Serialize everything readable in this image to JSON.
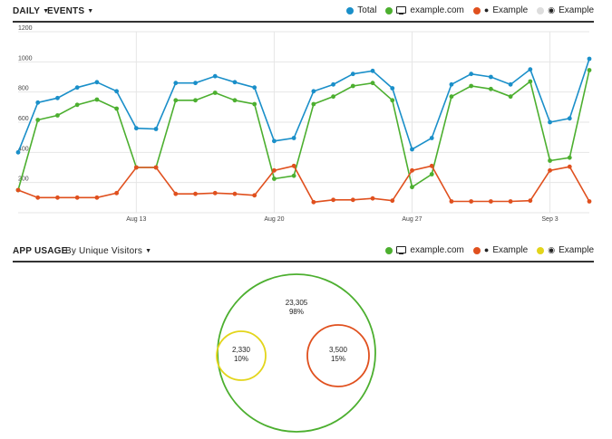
{
  "header": {
    "period_label": "DAILY",
    "metric_label": "EVENTS",
    "legend": [
      {
        "label": "Total",
        "color": "#1a8fc9",
        "icon": "dot"
      },
      {
        "label": "example.com",
        "color": "#4caf2f",
        "icon": "monitor-icon"
      },
      {
        "label": "Example",
        "color": "#e0501e",
        "icon": "apple-icon"
      },
      {
        "label": "Example",
        "color": "#dddddd",
        "icon": "android-icon"
      }
    ]
  },
  "usage": {
    "title": "APP USAGE",
    "filter_label": "By Unique Visitors",
    "legend": [
      {
        "label": "example.com",
        "color": "#4caf2f",
        "icon": "monitor-icon"
      },
      {
        "label": "Example",
        "color": "#e0501e",
        "icon": "apple-icon"
      },
      {
        "label": "Example",
        "color": "#e3d51b",
        "icon": "android-icon"
      }
    ]
  },
  "chart_data": [
    {
      "type": "line",
      "ylim": [
        0,
        1200
      ],
      "yticks": [
        200,
        400,
        600,
        800,
        1000,
        1200
      ],
      "ytick_labels": [
        "200",
        "400",
        "600",
        "800",
        "1000",
        "1200"
      ],
      "x_tick_labels": [
        {
          "index": 6,
          "label": "Aug 13"
        },
        {
          "index": 13,
          "label": "Aug 20"
        },
        {
          "index": 20,
          "label": "Aug 27"
        },
        {
          "index": 27,
          "label": "Sep 3"
        }
      ],
      "grid": true,
      "series": [
        {
          "color": "#1a8fc9",
          "values": [
            400,
            730,
            760,
            830,
            865,
            805,
            560,
            555,
            860,
            860,
            905,
            865,
            830,
            475,
            495,
            805,
            850,
            920,
            940,
            825,
            420,
            495,
            850,
            920,
            900,
            850,
            950,
            600,
            625,
            1020
          ]
        },
        {
          "color": "#4caf2f",
          "values": [
            150,
            615,
            645,
            715,
            750,
            690,
            300,
            300,
            745,
            745,
            795,
            745,
            720,
            225,
            245,
            720,
            770,
            840,
            860,
            745,
            170,
            255,
            770,
            840,
            820,
            770,
            870,
            345,
            365,
            945
          ]
        },
        {
          "color": "#e0501e",
          "values": [
            150,
            100,
            100,
            100,
            100,
            130,
            300,
            300,
            125,
            125,
            130,
            125,
            115,
            280,
            310,
            70,
            85,
            85,
            95,
            80,
            280,
            310,
            75,
            75,
            75,
            75,
            80,
            280,
            305,
            75
          ]
        }
      ]
    },
    {
      "type": "venn",
      "sets": [
        {
          "value": "23,305",
          "percent": "98%",
          "color": "#4caf2f"
        },
        {
          "value": "3,500",
          "percent": "15%",
          "color": "#e0501e"
        },
        {
          "value": "2,330",
          "percent": "10%",
          "color": "#e3d51b"
        }
      ]
    }
  ]
}
